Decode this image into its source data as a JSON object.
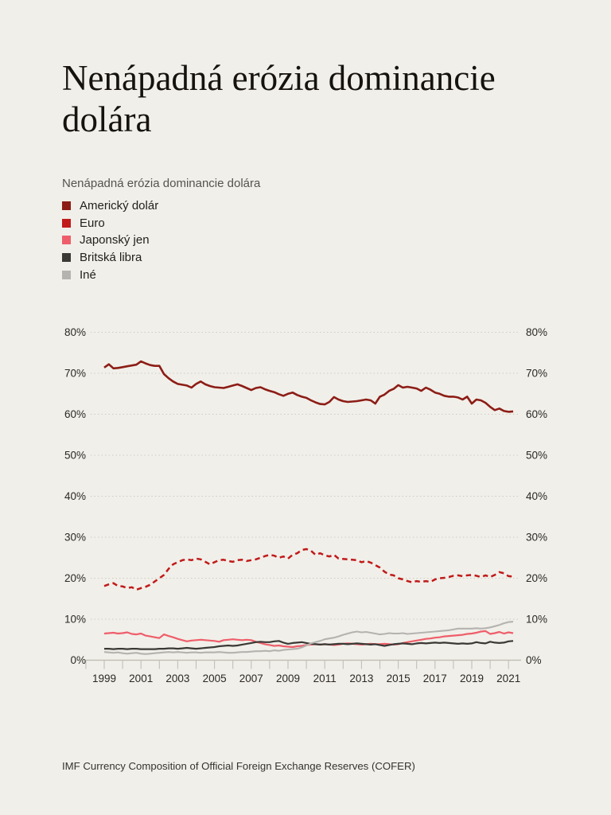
{
  "page": {
    "title": "Nenápadná erózia dominancie dolára",
    "source": "IMF Currency Composition of Official Foreign Exchange Reserves (COFER)"
  },
  "legend": {
    "title": "Nenápadná erózia dominancie dolára"
  },
  "theme": {
    "background": "#f1efe9",
    "title_color": "#16130f",
    "label_color": "#2b2823",
    "grid_color": "#ccc9c2",
    "axis_color": "#c2bfb8"
  },
  "chart_data": {
    "type": "line",
    "title": "Nenápadná erózia dominancie dolára",
    "xlabel": "",
    "ylabel": "",
    "y_unit": "%",
    "y_ticks": [
      0,
      10,
      20,
      30,
      40,
      50,
      60,
      70,
      80
    ],
    "ylim": [
      0,
      84
    ],
    "x_start": 1999,
    "x_step": 0.25,
    "x_tick_years": [
      1998,
      2021
    ],
    "x_tick_labels": [
      "1999",
      "2001",
      "2003",
      "2005",
      "2007",
      "2009",
      "2011",
      "2013",
      "2015",
      "2017",
      "2019",
      "2021"
    ],
    "grid": "dotted-horizontal",
    "legend_position": "top-left",
    "draw_order": [
      "jpy",
      "gbp",
      "other",
      "eur",
      "usd"
    ],
    "series": [
      {
        "id": "usd",
        "name": "Americký dolár",
        "color": "#8c1d16",
        "dash": "solid",
        "values": [
          71.4,
          72.2,
          71.2,
          71.3,
          71.5,
          71.7,
          71.9,
          72.1,
          72.9,
          72.4,
          72.0,
          71.8,
          71.8,
          69.8,
          68.8,
          68.0,
          67.4,
          67.2,
          67.0,
          66.5,
          67.4,
          68.0,
          67.3,
          66.9,
          66.6,
          66.5,
          66.4,
          66.7,
          67.0,
          67.3,
          66.9,
          66.4,
          65.9,
          66.4,
          66.6,
          66.1,
          65.7,
          65.4,
          64.9,
          64.5,
          65.0,
          65.3,
          64.7,
          64.3,
          64.0,
          63.4,
          62.9,
          62.5,
          62.4,
          63.0,
          64.2,
          63.6,
          63.2,
          63.0,
          63.1,
          63.2,
          63.4,
          63.6,
          63.4,
          62.6,
          64.3,
          64.8,
          65.7,
          66.2,
          67.1,
          66.5,
          66.7,
          66.5,
          66.3,
          65.7,
          66.5,
          66.0,
          65.3,
          65.0,
          64.5,
          64.3,
          64.3,
          64.1,
          63.6,
          64.3,
          62.6,
          63.6,
          63.4,
          62.8,
          61.8,
          61.0,
          61.4,
          60.8,
          60.6,
          60.7
        ]
      },
      {
        "id": "eur",
        "name": "Euro",
        "color": "#c01a1a",
        "dash": "dashed",
        "values": [
          18.1,
          18.5,
          18.8,
          18.1,
          18.0,
          17.6,
          17.8,
          17.2,
          17.6,
          17.9,
          18.4,
          19.2,
          20.0,
          20.8,
          22.3,
          23.4,
          23.9,
          24.4,
          24.6,
          24.4,
          24.8,
          24.6,
          24.0,
          23.4,
          23.9,
          24.4,
          24.5,
          24.2,
          24.0,
          24.4,
          24.5,
          24.2,
          24.4,
          24.6,
          25.0,
          25.4,
          25.7,
          25.5,
          25.0,
          25.3,
          24.8,
          25.7,
          26.1,
          26.9,
          27.1,
          26.7,
          25.7,
          26.1,
          25.6,
          25.3,
          25.7,
          24.8,
          24.7,
          24.6,
          24.5,
          24.4,
          23.9,
          24.2,
          23.8,
          23.2,
          22.6,
          21.6,
          20.9,
          20.7,
          20.0,
          19.7,
          19.3,
          19.0,
          19.3,
          19.1,
          19.3,
          19.1,
          19.7,
          20.0,
          20.1,
          20.3,
          20.6,
          20.7,
          20.5,
          20.7,
          20.8,
          20.6,
          20.3,
          20.7,
          20.3,
          20.8,
          21.5,
          21.2,
          20.5,
          20.4
        ]
      },
      {
        "id": "jpy",
        "name": "Japonský jen",
        "color": "#ee5e6a",
        "dash": "solid",
        "values": [
          6.5,
          6.6,
          6.7,
          6.5,
          6.6,
          6.8,
          6.4,
          6.3,
          6.5,
          6.0,
          5.8,
          5.6,
          5.4,
          6.3,
          5.9,
          5.6,
          5.2,
          4.9,
          4.6,
          4.8,
          4.9,
          5.0,
          4.9,
          4.8,
          4.7,
          4.5,
          4.9,
          5.0,
          5.1,
          5.0,
          4.9,
          5.0,
          4.9,
          4.5,
          4.2,
          3.9,
          3.7,
          3.5,
          3.6,
          3.4,
          3.3,
          3.2,
          3.4,
          3.5,
          3.7,
          3.8,
          3.9,
          3.8,
          3.9,
          3.8,
          3.7,
          3.8,
          4.0,
          4.1,
          4.0,
          3.9,
          3.8,
          3.9,
          4.0,
          3.9,
          3.9,
          4.0,
          3.9,
          3.8,
          3.9,
          4.2,
          4.4,
          4.6,
          4.8,
          5.0,
          5.2,
          5.3,
          5.5,
          5.6,
          5.8,
          5.9,
          6.0,
          6.1,
          6.2,
          6.4,
          6.5,
          6.7,
          7.0,
          7.1,
          6.4,
          6.6,
          6.9,
          6.5,
          6.8,
          6.6
        ]
      },
      {
        "id": "gbp",
        "name": "Britská libra",
        "color": "#3a3935",
        "dash": "solid",
        "values": [
          2.8,
          2.8,
          2.7,
          2.8,
          2.8,
          2.7,
          2.8,
          2.8,
          2.7,
          2.7,
          2.7,
          2.7,
          2.8,
          2.8,
          2.9,
          2.9,
          2.8,
          2.9,
          3.0,
          2.9,
          2.8,
          2.9,
          3.0,
          3.1,
          3.2,
          3.4,
          3.5,
          3.6,
          3.5,
          3.6,
          3.8,
          4.0,
          4.2,
          4.4,
          4.5,
          4.4,
          4.4,
          4.6,
          4.7,
          4.3,
          4.0,
          4.2,
          4.3,
          4.4,
          4.2,
          4.0,
          3.9,
          3.8,
          3.9,
          3.8,
          3.9,
          4.0,
          4.0,
          3.9,
          4.0,
          4.1,
          4.0,
          3.9,
          3.8,
          3.9,
          3.7,
          3.5,
          3.7,
          3.9,
          4.0,
          4.1,
          4.0,
          3.9,
          4.1,
          4.2,
          4.1,
          4.2,
          4.3,
          4.2,
          4.3,
          4.2,
          4.1,
          4.0,
          4.1,
          4.0,
          4.1,
          4.4,
          4.2,
          4.1,
          4.5,
          4.3,
          4.2,
          4.3,
          4.6,
          4.7
        ]
      },
      {
        "id": "other",
        "name": "Iné",
        "color": "#b5b3af",
        "dash": "solid",
        "values": [
          2.0,
          1.9,
          1.8,
          1.9,
          1.7,
          1.6,
          1.7,
          1.8,
          1.6,
          1.5,
          1.6,
          1.7,
          1.8,
          1.9,
          2.0,
          1.9,
          2.0,
          1.9,
          1.8,
          1.9,
          1.9,
          1.8,
          1.9,
          1.9,
          1.9,
          2.0,
          1.9,
          1.8,
          1.8,
          1.9,
          2.0,
          2.0,
          2.1,
          2.2,
          2.2,
          2.3,
          2.2,
          2.4,
          2.3,
          2.5,
          2.6,
          2.7,
          2.8,
          3.1,
          3.6,
          4.1,
          4.4,
          4.7,
          5.1,
          5.3,
          5.5,
          5.8,
          6.2,
          6.5,
          6.8,
          7.0,
          6.8,
          6.9,
          6.7,
          6.5,
          6.3,
          6.4,
          6.6,
          6.5,
          6.5,
          6.6,
          6.4,
          6.5,
          6.6,
          6.7,
          6.8,
          6.9,
          7.0,
          7.1,
          7.2,
          7.3,
          7.5,
          7.7,
          7.7,
          7.7,
          7.7,
          7.8,
          7.7,
          7.8,
          8.0,
          8.3,
          8.6,
          9.0,
          9.3,
          9.4
        ]
      }
    ]
  }
}
